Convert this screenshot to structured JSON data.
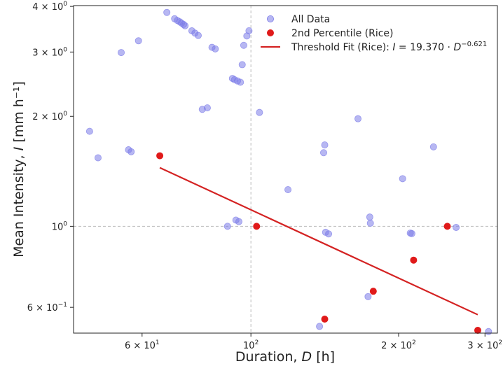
{
  "chart_data": {
    "type": "scatter",
    "title": "",
    "xlabel": "Duration, D [h]",
    "ylabel": "Mean Intensity, I [mm h⁻¹]",
    "xscale": "log",
    "yscale": "log",
    "xlim": [
      43.5,
      318
    ],
    "ylim": [
      0.51,
      4.02
    ],
    "grid": "dashed lines at major ticks",
    "legend_position": "top-right",
    "x_ticks": [
      {
        "value": 60,
        "base": "6 × 10",
        "exp": "1"
      },
      {
        "value": 100,
        "base": "10",
        "exp": "2"
      },
      {
        "value": 200,
        "base": "2 × 10",
        "exp": "2"
      },
      {
        "value": 300,
        "base": "3 × 10",
        "exp": "2"
      }
    ],
    "y_ticks": [
      {
        "value": 0.6,
        "base": "6 × 10",
        "exp": "−1"
      },
      {
        "value": 1,
        "base": "10",
        "exp": "0"
      },
      {
        "value": 2,
        "base": "2 × 10",
        "exp": "0"
      },
      {
        "value": 3,
        "base": "3 × 10",
        "exp": "0"
      },
      {
        "value": 4,
        "base": "4 × 10",
        "exp": "0"
      }
    ],
    "series": [
      {
        "name": "All Data",
        "kind": "scatter",
        "color": "#7b7be8",
        "points": [
          [
            46.9,
            1.82
          ],
          [
            48.8,
            1.54
          ],
          [
            54.4,
            2.99
          ],
          [
            56.3,
            1.62
          ],
          [
            57.0,
            1.6
          ],
          [
            59.0,
            3.22
          ],
          [
            67.4,
            3.85
          ],
          [
            69.9,
            3.7
          ],
          [
            70.8,
            3.66
          ],
          [
            71.6,
            3.63
          ],
          [
            72.2,
            3.6
          ],
          [
            72.9,
            3.57
          ],
          [
            73.4,
            3.54
          ],
          [
            75.8,
            3.43
          ],
          [
            76.9,
            3.38
          ],
          [
            78.1,
            3.33
          ],
          [
            79.6,
            2.09
          ],
          [
            81.5,
            2.11
          ],
          [
            83.3,
            3.09
          ],
          [
            84.6,
            3.06
          ],
          [
            89.6,
            1.0
          ],
          [
            91.7,
            2.54
          ],
          [
            92.6,
            2.52
          ],
          [
            93.2,
            1.04
          ],
          [
            93.9,
            2.5
          ],
          [
            94.5,
            1.03
          ],
          [
            95.2,
            2.48
          ],
          [
            96.0,
            2.77
          ],
          [
            96.7,
            3.13
          ],
          [
            98.1,
            3.32
          ],
          [
            99.1,
            3.43
          ],
          [
            104.1,
            2.05
          ],
          [
            119.0,
            1.26
          ],
          [
            138.0,
            0.532
          ],
          [
            140.7,
            1.59
          ],
          [
            141.4,
            1.67
          ],
          [
            142.0,
            0.963
          ],
          [
            144.0,
            0.953
          ],
          [
            165.3,
            1.97
          ],
          [
            173.3,
            0.642
          ],
          [
            174.7,
            1.06
          ],
          [
            175.2,
            1.02
          ],
          [
            203.8,
            1.35
          ],
          [
            211.3,
            0.958
          ],
          [
            212.8,
            0.955
          ],
          [
            235.6,
            1.65
          ],
          [
            262.0,
            0.993
          ],
          [
            305.0,
            0.515
          ]
        ]
      },
      {
        "name": "2nd Percentile (Rice)",
        "kind": "scatter",
        "color": "#e01a1a",
        "points": [
          [
            65.2,
            1.56
          ],
          [
            102.7,
            1.0
          ],
          [
            141.4,
            0.557
          ],
          [
            177.6,
            0.664
          ],
          [
            214.6,
            0.808
          ],
          [
            251.4,
            1.0
          ],
          [
            290.0,
            0.519
          ]
        ]
      },
      {
        "name": "Threshold Fit (Rice): ",
        "kind": "line",
        "color": "#d42222",
        "a": 19.37,
        "b": -0.621,
        "x_range": [
          65.2,
          290.0
        ]
      }
    ],
    "legend": [
      {
        "label": "All Data",
        "marker": "circle",
        "color": "#7b7be8"
      },
      {
        "label": "2nd Percentile (Rice)",
        "marker": "circle",
        "color": "#e01a1a"
      },
      {
        "label": "Threshold Fit (Rice): ",
        "formula_lhs": "I",
        "formula_eq": " = 19.370 · ",
        "formula_var": "D",
        "formula_exp": "−0.621",
        "marker": "line",
        "color": "#d42222"
      }
    ]
  }
}
